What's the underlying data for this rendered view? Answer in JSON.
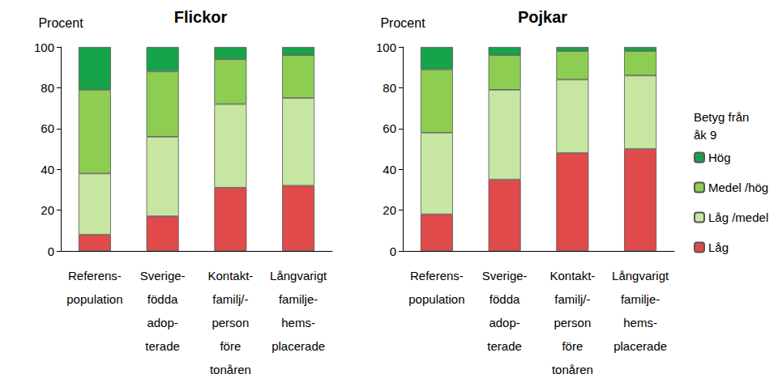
{
  "chart_data": [
    {
      "type": "bar",
      "title": "Flickor",
      "y_label": "Procent",
      "categories": [
        "Referens-\npopulation",
        "Sverige-\nfödda\nadop-\nterade",
        "Kontakt-\nfamilj/-\nperson\nföre\ntonåren",
        "Långvarigt\nfamilje-\nhems-\nplacerade"
      ],
      "series": [
        {
          "name": "Låg",
          "color": "#e04a4a",
          "values": [
            8,
            17,
            31,
            32
          ]
        },
        {
          "name": "Låg /medel",
          "color": "#c6e6a2",
          "values": [
            30,
            39,
            41,
            43
          ]
        },
        {
          "name": "Medel /hög",
          "color": "#8ccd52",
          "values": [
            41,
            32,
            22,
            21
          ]
        },
        {
          "name": "Hög",
          "color": "#17a34a",
          "values": [
            21,
            12,
            6,
            4
          ]
        }
      ],
      "ylim": [
        0,
        100
      ],
      "yticks": [
        0,
        20,
        40,
        60,
        80,
        100
      ],
      "stacked": true,
      "grid": false
    },
    {
      "type": "bar",
      "title": "Pojkar",
      "y_label": "Procent",
      "categories": [
        "Referens-\npopulation",
        "Sverige-\nfödda\nadop-\nterade",
        "Kontakt-\nfamilj/-\nperson\nföre\ntonåren",
        "Långvarigt\nfamilje-\nhems-\nplacerade"
      ],
      "series": [
        {
          "name": "Låg",
          "color": "#e04a4a",
          "values": [
            18,
            35,
            48,
            50
          ]
        },
        {
          "name": "Låg /medel",
          "color": "#c6e6a2",
          "values": [
            40,
            44,
            36,
            36
          ]
        },
        {
          "name": "Medel /hög",
          "color": "#8ccd52",
          "values": [
            31,
            17,
            14,
            12
          ]
        },
        {
          "name": "Hög",
          "color": "#17a34a",
          "values": [
            11,
            4,
            2,
            2
          ]
        }
      ],
      "ylim": [
        0,
        100
      ],
      "yticks": [
        0,
        20,
        40,
        60,
        80,
        100
      ],
      "stacked": true,
      "grid": false,
      "legend": "right",
      "legend_title": "Betyg från åk 9"
    }
  ]
}
